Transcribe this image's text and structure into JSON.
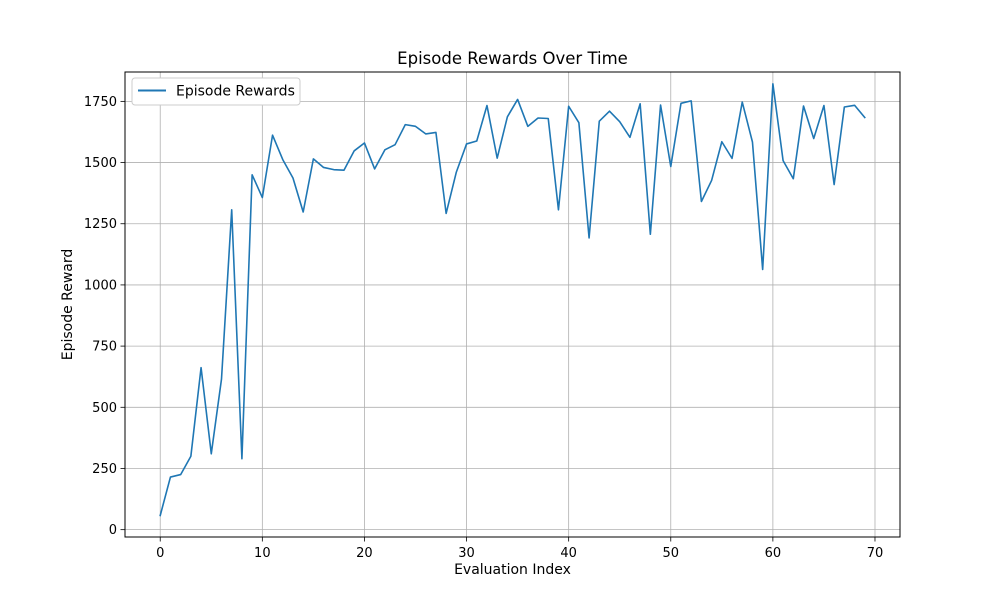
{
  "chart_data": {
    "type": "line",
    "title": "Episode Rewards Over Time",
    "xlabel": "Evaluation Index",
    "ylabel": "Episode Reward",
    "xlim": [
      -3.45,
      72.45
    ],
    "ylim": [
      -30,
      1870
    ],
    "xticks": [
      0,
      10,
      20,
      30,
      40,
      50,
      60,
      70
    ],
    "yticks": [
      0,
      250,
      500,
      750,
      1000,
      1250,
      1500,
      1750
    ],
    "grid": true,
    "legend_position": "top-left",
    "series": [
      {
        "name": "Episode Rewards",
        "color": "#1f77b4",
        "x": [
          0,
          1,
          2,
          3,
          4,
          5,
          6,
          7,
          8,
          9,
          10,
          11,
          12,
          13,
          14,
          15,
          16,
          17,
          18,
          19,
          20,
          21,
          22,
          23,
          24,
          25,
          26,
          27,
          28,
          29,
          30,
          31,
          32,
          33,
          34,
          35,
          36,
          37,
          38,
          39,
          40,
          41,
          42,
          43,
          44,
          45,
          46,
          47,
          48,
          49,
          50,
          51,
          52,
          53,
          54,
          55,
          56,
          57,
          58,
          59,
          60,
          61,
          62,
          63,
          64,
          65,
          66,
          67,
          68,
          69
        ],
        "y": [
          58,
          215,
          225,
          300,
          662,
          310,
          615,
          1307,
          290,
          1450,
          1357,
          1612,
          1512,
          1437,
          1298,
          1515,
          1480,
          1471,
          1469,
          1548,
          1580,
          1474,
          1552,
          1573,
          1655,
          1648,
          1617,
          1623,
          1292,
          1461,
          1576,
          1588,
          1733,
          1518,
          1687,
          1758,
          1648,
          1682,
          1680,
          1307,
          1730,
          1663,
          1192,
          1669,
          1710,
          1667,
          1603,
          1740,
          1207,
          1735,
          1484,
          1742,
          1752,
          1341,
          1427,
          1585,
          1517,
          1747,
          1584,
          1063,
          1822,
          1508,
          1434,
          1731,
          1598,
          1733,
          1410,
          1727,
          1734,
          1684
        ]
      }
    ]
  }
}
